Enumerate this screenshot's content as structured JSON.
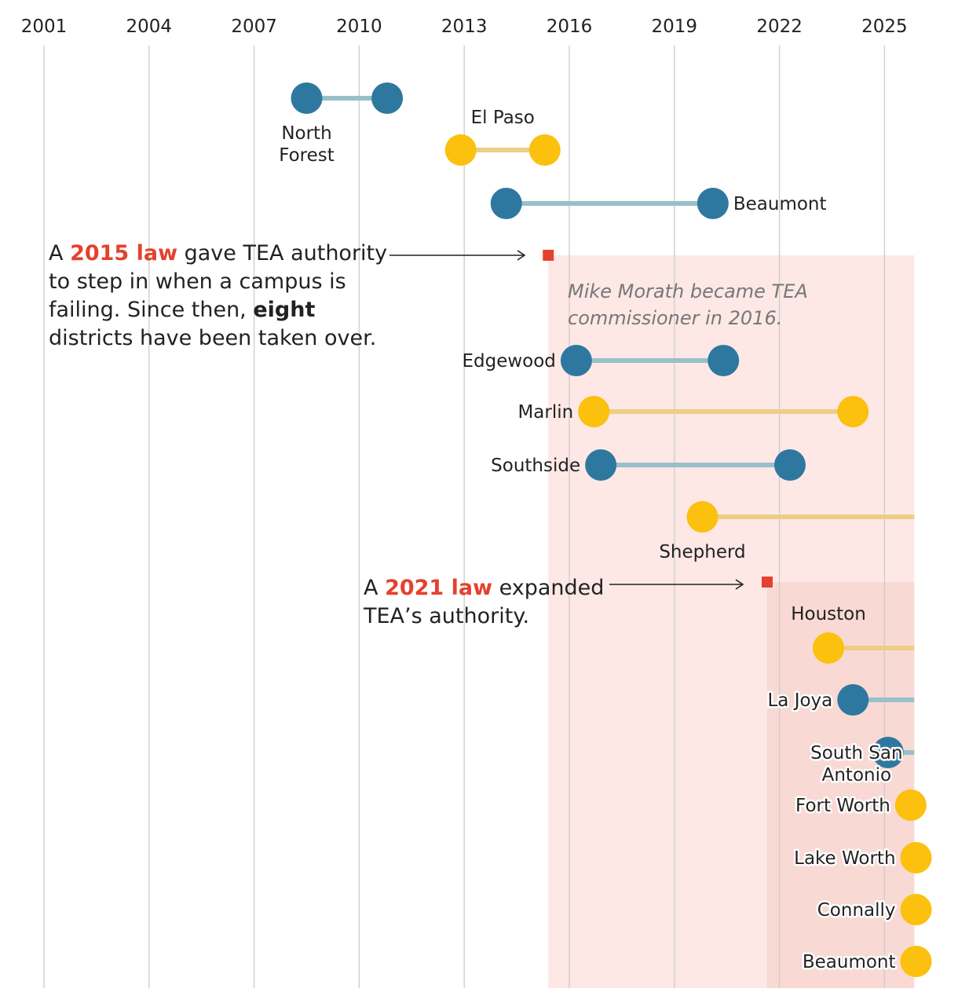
{
  "colors": {
    "blue": "#2e78a0",
    "blue_bar": "#99bfca",
    "yellow": "#fcc00e",
    "yellow_bar": "#ecce86",
    "red": "#e5412e",
    "band_2015": "#fde8e6",
    "band_2021": "#f9d9d4",
    "grid": "#cccccc"
  },
  "chart_data": {
    "type": "range-dot timeline",
    "title": "",
    "x_range": [
      2001,
      2026
    ],
    "x_ticks": [
      2001,
      2004,
      2007,
      2010,
      2013,
      2016,
      2019,
      2022,
      2025
    ],
    "x_tick_labels": [
      "2001",
      "2004",
      "2007",
      "2010",
      "2013",
      "2016",
      "2019",
      "2022",
      "2025"
    ],
    "chart_end": 2025.85,
    "districts": [
      {
        "name": "North Forest",
        "start": 2008.5,
        "end": 2010.8,
        "ongoing": false,
        "color": "blue"
      },
      {
        "name": "El Paso",
        "start": 2012.9,
        "end": 2015.3,
        "ongoing": false,
        "color": "yellow"
      },
      {
        "name": "Beaumont",
        "start": 2014.2,
        "end": 2020.1,
        "ongoing": false,
        "color": "blue"
      },
      {
        "name": "Edgewood",
        "start": 2016.2,
        "end": 2020.4,
        "ongoing": false,
        "color": "blue"
      },
      {
        "name": "Marlin",
        "start": 2016.7,
        "end": 2024.1,
        "ongoing": false,
        "color": "yellow"
      },
      {
        "name": "Southside",
        "start": 2016.9,
        "end": 2022.3,
        "ongoing": false,
        "color": "blue"
      },
      {
        "name": "Shepherd",
        "start": 2019.8,
        "end": null,
        "ongoing": true,
        "color": "yellow"
      },
      {
        "name": "Houston",
        "start": 2023.4,
        "end": null,
        "ongoing": true,
        "color": "yellow"
      },
      {
        "name": "La Joya",
        "start": 2024.1,
        "end": null,
        "ongoing": true,
        "color": "blue"
      },
      {
        "name": "South San Antonio",
        "start": 2025.1,
        "end": null,
        "ongoing": true,
        "color": "blue"
      },
      {
        "name": "Fort Worth",
        "start": 2025.75,
        "end": null,
        "ongoing": true,
        "color": "yellow"
      },
      {
        "name": "Lake Worth",
        "start": 2025.9,
        "end": null,
        "ongoing": true,
        "color": "yellow"
      },
      {
        "name": "Connally",
        "start": 2025.9,
        "end": null,
        "ongoing": true,
        "color": "yellow"
      },
      {
        "name": "Beaumont",
        "start": 2025.9,
        "end": null,
        "ongoing": true,
        "color": "yellow"
      }
    ],
    "shaded_regions": [
      {
        "start": 2015.4,
        "end": 2025.85,
        "label": "2015 law"
      },
      {
        "start": 2021.65,
        "end": 2025.85,
        "label": "2021 law"
      }
    ],
    "law_markers": [
      {
        "year": 2015.4,
        "label": "2015 law"
      },
      {
        "year": 2021.65,
        "label": "2021 law"
      }
    ]
  },
  "annotations": {
    "law2015": {
      "pre": "A ",
      "highlight": "2015 law",
      "post": " gave TEA authority",
      "line2": "to step in when a campus is",
      "line3_pre": "failing. Since then, ",
      "line3_bold": "eight",
      "line4": "districts have been taken over."
    },
    "law2021": {
      "pre": "A ",
      "highlight": "2021 law",
      "post": " expanded",
      "line2": "TEA’s authority."
    },
    "morath": {
      "line1": "Mike Morath became TEA",
      "line2": "commissioner in 2016."
    }
  }
}
